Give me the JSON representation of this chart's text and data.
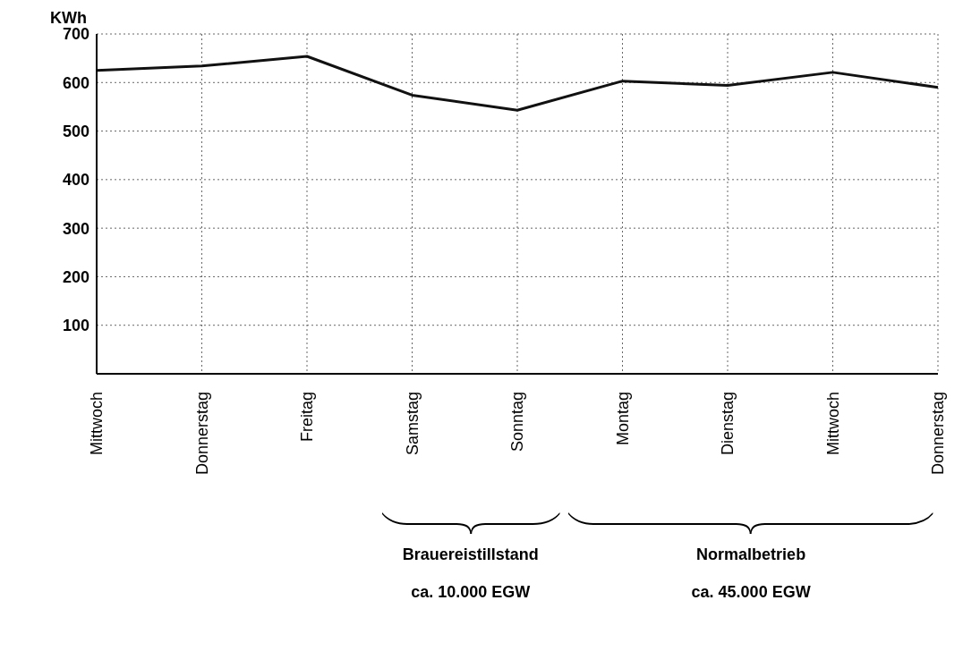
{
  "chart_data": {
    "type": "line",
    "ylabel": "KWh",
    "categories": [
      "Mittwoch",
      "Donnerstag",
      "Freitag",
      "Samstag",
      "Sonntag",
      "Montag",
      "Dienstag",
      "Mittwoch",
      "Donnerstag"
    ],
    "series": [
      {
        "color": "#111111",
        "values": [
          625,
          634,
          654,
          574,
          543,
          603,
          594,
          621,
          590
        ]
      }
    ],
    "ylim": [
      0,
      700
    ],
    "yticks": [
      100,
      200,
      300,
      400,
      500,
      600,
      700
    ],
    "grid": true,
    "legend": false,
    "marker": "none",
    "line_style": "solid",
    "annotations": [
      "Brauereistillstand",
      "ca. 10.000 EGW",
      "Normalbetrieb",
      "ca. 45.000 EGW"
    ]
  }
}
